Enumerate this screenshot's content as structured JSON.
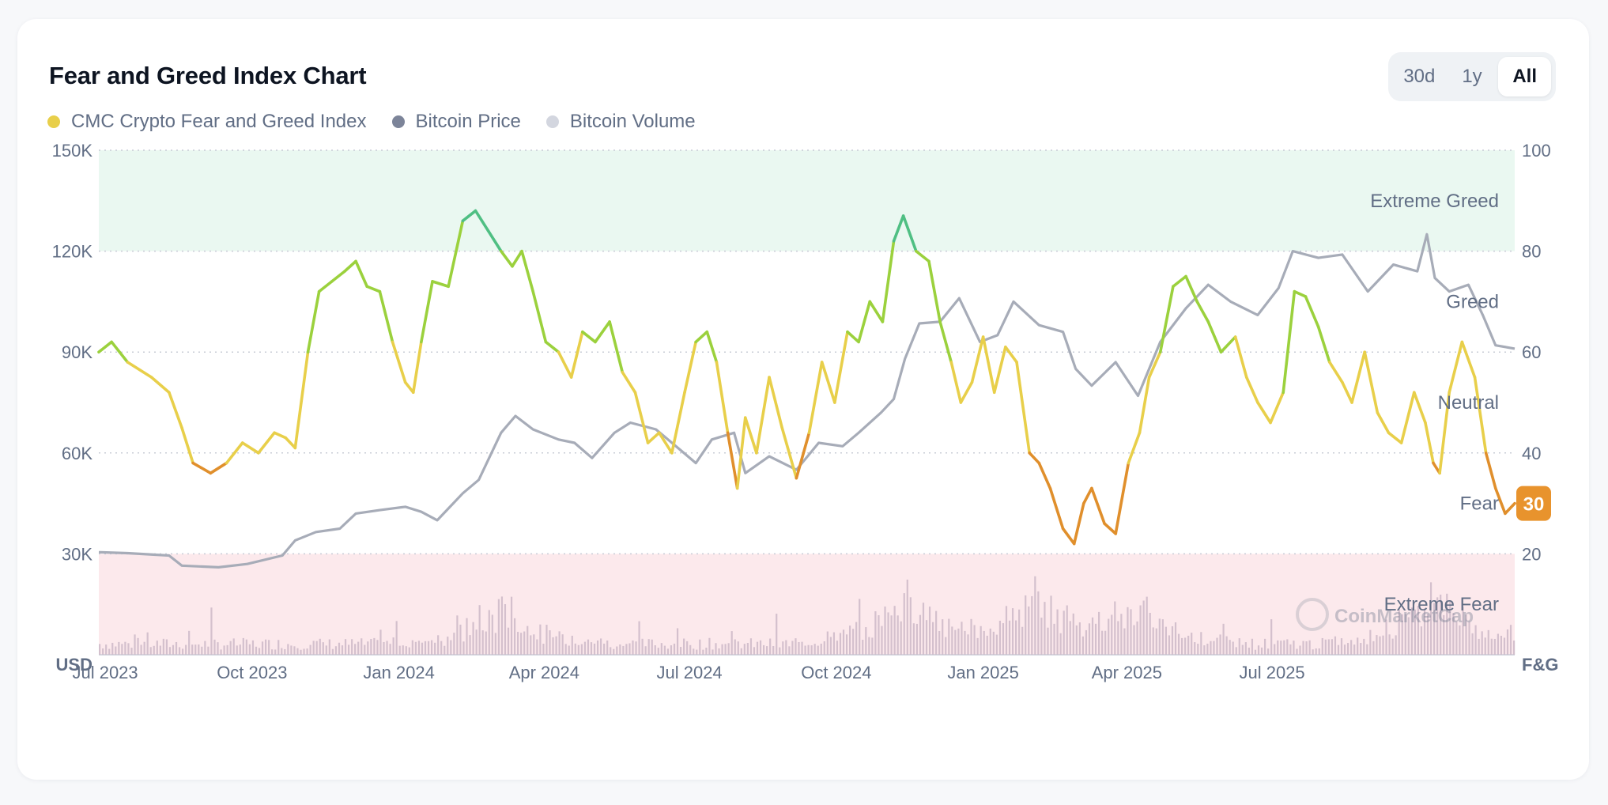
{
  "card": {
    "title": "Fear and Greed Index Chart",
    "range_buttons": [
      {
        "label": "30d",
        "active": false
      },
      {
        "label": "1y",
        "active": false
      },
      {
        "label": "All",
        "active": true
      }
    ]
  },
  "chart_data": {
    "type": "line",
    "title": "Fear and Greed Index Chart",
    "legend_position": "top-left",
    "grid": true,
    "legend": [
      {
        "name": "CMC Crypto Fear and Greed Index",
        "color": "#e8cf4a"
      },
      {
        "name": "Bitcoin Price",
        "color": "#7c8499"
      },
      {
        "name": "Bitcoin Volume",
        "color": "#d3d6df"
      }
    ],
    "left_axis": {
      "label": "USD",
      "ticks": [
        "30K",
        "60K",
        "90K",
        "120K",
        "150K"
      ],
      "values": [
        30000,
        60000,
        90000,
        120000,
        150000
      ],
      "range": [
        0,
        150000
      ]
    },
    "right_axis": {
      "label": "F&G",
      "ticks": [
        "20",
        "40",
        "60",
        "80",
        "100"
      ],
      "values": [
        20,
        40,
        60,
        80,
        100
      ],
      "range": [
        0,
        100
      ]
    },
    "x_ticks": [
      "Jul 2023",
      "Oct 2023",
      "Jan 2024",
      "Apr 2024",
      "Jul 2024",
      "Oct 2024",
      "Jan 2025",
      "Apr 2025",
      "Jul 2025"
    ],
    "x_range": [
      "2023-06-27",
      "2025-11-30"
    ],
    "zones": [
      {
        "label": "Extreme Greed",
        "from": 80,
        "to": 100,
        "color": "#eaf8f1"
      },
      {
        "label": "Greed",
        "from": 60,
        "to": 80
      },
      {
        "label": "Neutral",
        "from": 40,
        "to": 60
      },
      {
        "label": "Fear",
        "from": 20,
        "to": 40
      },
      {
        "label": "Extreme Fear",
        "from": 0,
        "to": 20,
        "color": "#fce9ec"
      }
    ],
    "current_value": {
      "label": "30",
      "color": "#e8932d"
    },
    "watermark": "CoinMarketCap",
    "series": [
      {
        "name": "CMC Crypto Fear and Greed Index",
        "axis": "right",
        "x": [
          "2023-06-27",
          "2023-07-05",
          "2023-07-15",
          "2023-07-30",
          "2023-08-10",
          "2023-08-18",
          "2023-08-25",
          "2023-09-05",
          "2023-09-15",
          "2023-09-25",
          "2023-10-05",
          "2023-10-15",
          "2023-10-22",
          "2023-10-28",
          "2023-11-05",
          "2023-11-12",
          "2023-11-20",
          "2023-11-28",
          "2023-12-05",
          "2023-12-12",
          "2023-12-20",
          "2023-12-28",
          "2024-01-05",
          "2024-01-10",
          "2024-01-15",
          "2024-01-22",
          "2024-02-01",
          "2024-02-10",
          "2024-02-18",
          "2024-02-26",
          "2024-03-05",
          "2024-03-12",
          "2024-03-18",
          "2024-03-25",
          "2024-04-02",
          "2024-04-10",
          "2024-04-18",
          "2024-04-25",
          "2024-05-03",
          "2024-05-12",
          "2024-05-20",
          "2024-05-28",
          "2024-06-05",
          "2024-06-12",
          "2024-06-20",
          "2024-06-28",
          "2024-07-05",
          "2024-07-12",
          "2024-07-18",
          "2024-07-25",
          "2024-07-31",
          "2024-08-05",
          "2024-08-12",
          "2024-08-20",
          "2024-08-28",
          "2024-09-06",
          "2024-09-14",
          "2024-09-22",
          "2024-09-30",
          "2024-10-08",
          "2024-10-15",
          "2024-10-22",
          "2024-10-30",
          "2024-11-06",
          "2024-11-12",
          "2024-11-20",
          "2024-11-28",
          "2024-12-05",
          "2024-12-12",
          "2024-12-18",
          "2024-12-25",
          "2025-01-01",
          "2025-01-08",
          "2025-01-15",
          "2025-01-22",
          "2025-01-30",
          "2025-02-05",
          "2025-02-12",
          "2025-02-20",
          "2025-02-27",
          "2025-03-05",
          "2025-03-10",
          "2025-03-18",
          "2025-03-25",
          "2025-04-02",
          "2025-04-09",
          "2025-04-15",
          "2025-04-22",
          "2025-04-30",
          "2025-05-08",
          "2025-05-15",
          "2025-05-22",
          "2025-05-30",
          "2025-06-08",
          "2025-06-15",
          "2025-06-22",
          "2025-06-30",
          "2025-07-08",
          "2025-07-15",
          "2025-07-22",
          "2025-07-30",
          "2025-08-06",
          "2025-08-14",
          "2025-08-20",
          "2025-08-28",
          "2025-09-05",
          "2025-09-12",
          "2025-09-20",
          "2025-09-28",
          "2025-10-05",
          "2025-10-10",
          "2025-10-14",
          "2025-10-20",
          "2025-10-28",
          "2025-11-05",
          "2025-11-12",
          "2025-11-18",
          "2025-11-24",
          "2025-11-30"
        ],
        "values": [
          60,
          62,
          58,
          55,
          52,
          45,
          38,
          36,
          38,
          42,
          40,
          44,
          43,
          41,
          60,
          72,
          74,
          76,
          78,
          73,
          72,
          62,
          54,
          52,
          62,
          74,
          73,
          86,
          88,
          84,
          80,
          77,
          80,
          72,
          62,
          60,
          55,
          64,
          62,
          66,
          56,
          52,
          42,
          44,
          40,
          52,
          62,
          64,
          58,
          44,
          33,
          47,
          40,
          55,
          45,
          35,
          44,
          58,
          50,
          64,
          62,
          70,
          66,
          82,
          87,
          80,
          78,
          66,
          58,
          50,
          54,
          63,
          52,
          61,
          58,
          40,
          38,
          33,
          25,
          22,
          30,
          33,
          26,
          24,
          38,
          44,
          55,
          60,
          73,
          75,
          70,
          66,
          60,
          63,
          55,
          50,
          46,
          52,
          72,
          71,
          65,
          58,
          54,
          50,
          60,
          48,
          44,
          42,
          52,
          46,
          38,
          36,
          52,
          62,
          55,
          40,
          33,
          28,
          30
        ]
      },
      {
        "name": "Bitcoin Price",
        "axis": "left",
        "x": [
          "2023-06-27",
          "2023-07-15",
          "2023-08-10",
          "2023-08-18",
          "2023-09-10",
          "2023-09-28",
          "2023-10-20",
          "2023-10-28",
          "2023-11-10",
          "2023-11-25",
          "2023-12-05",
          "2023-12-20",
          "2024-01-05",
          "2024-01-15",
          "2024-01-25",
          "2024-02-10",
          "2024-02-20",
          "2024-03-05",
          "2024-03-14",
          "2024-03-25",
          "2024-04-10",
          "2024-04-20",
          "2024-05-01",
          "2024-05-15",
          "2024-05-25",
          "2024-06-10",
          "2024-06-25",
          "2024-07-05",
          "2024-07-15",
          "2024-07-29",
          "2024-08-05",
          "2024-08-20",
          "2024-09-06",
          "2024-09-20",
          "2024-10-05",
          "2024-10-15",
          "2024-10-29",
          "2024-11-06",
          "2024-11-13",
          "2024-11-22",
          "2024-12-05",
          "2024-12-17",
          "2024-12-30",
          "2025-01-10",
          "2025-01-20",
          "2025-02-05",
          "2025-02-20",
          "2025-02-28",
          "2025-03-10",
          "2025-03-25",
          "2025-04-08",
          "2025-04-22",
          "2025-05-08",
          "2025-05-22",
          "2025-06-05",
          "2025-06-22",
          "2025-07-05",
          "2025-07-14",
          "2025-07-30",
          "2025-08-14",
          "2025-08-30",
          "2025-09-15",
          "2025-09-30",
          "2025-10-06",
          "2025-10-11",
          "2025-10-20",
          "2025-11-01",
          "2025-11-10",
          "2025-11-18",
          "2025-11-30"
        ],
        "values": [
          30500,
          30200,
          29500,
          26500,
          26000,
          27000,
          29500,
          34000,
          36500,
          37500,
          42000,
          43000,
          44000,
          42500,
          40000,
          48000,
          52000,
          66000,
          71000,
          67000,
          64000,
          63000,
          58500,
          66000,
          69000,
          67000,
          61000,
          57000,
          64000,
          66000,
          54000,
          59000,
          55000,
          63000,
          62000,
          66000,
          72000,
          76000,
          88000,
          98500,
          99000,
          106000,
          93000,
          95000,
          105000,
          98000,
          96000,
          85000,
          80000,
          87000,
          77000,
          93000,
          103000,
          110000,
          105000,
          101000,
          109000,
          120000,
          118000,
          119000,
          108000,
          116000,
          114000,
          125000,
          112000,
          108000,
          110000,
          101000,
          92000,
          91000
        ]
      },
      {
        "name": "Bitcoin Volume",
        "note": "daily bars along the bottom band, largest spikes near Mar 2024, Nov 2024 and Feb–Apr 2025",
        "relative_peaks": [
          [
            "2024-03-05",
            0.45
          ],
          [
            "2024-11-12",
            0.65
          ],
          [
            "2025-02-03",
            0.6
          ],
          [
            "2025-04-07",
            0.5
          ],
          [
            "2025-10-11",
            0.7
          ]
        ]
      }
    ]
  }
}
